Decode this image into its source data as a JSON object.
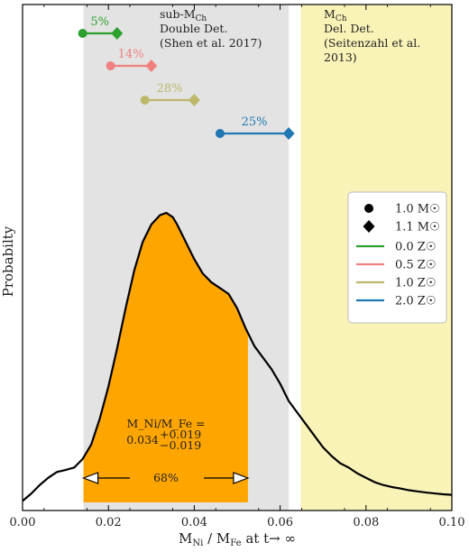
{
  "chart_data": {
    "type": "line",
    "title": "",
    "xlabel": "M_Ni / M_Fe at t→∞",
    "ylabel": "Probabilty",
    "xlim": [
      0.0,
      0.1
    ],
    "xticks": [
      "0.00",
      "0.02",
      "0.04",
      "0.06",
      "0.08",
      "0.10"
    ],
    "grid": false,
    "legend_position": "center-right",
    "regions": [
      {
        "name": "sub-MCh Double Det. (Shen et al. 2017)",
        "x0": 0.0142,
        "x1": 0.062,
        "color": "#e3e3e3",
        "lines": [
          "sub-M",
          "Ch",
          "Double Det.",
          "(Shen et al. 2017)"
        ]
      },
      {
        "name": "MCh Del. Det. (Seitenzahl et al. 2013)",
        "x0": 0.0648,
        "x1": 0.1,
        "color": "#faf3b8",
        "lines": [
          "M",
          "Ch",
          "Del. Det.",
          "(Seitenzahl et al.",
          "2013)"
        ]
      }
    ],
    "density": {
      "x": [
        0.0,
        0.002,
        0.004,
        0.006,
        0.008,
        0.01,
        0.012,
        0.014,
        0.016,
        0.018,
        0.02,
        0.022,
        0.024,
        0.026,
        0.028,
        0.03,
        0.032,
        0.0335,
        0.035,
        0.036,
        0.038,
        0.04,
        0.042,
        0.044,
        0.046,
        0.048,
        0.05,
        0.052,
        0.054,
        0.056,
        0.058,
        0.06,
        0.062,
        0.064,
        0.066,
        0.068,
        0.07,
        0.072,
        0.074,
        0.076,
        0.078,
        0.08,
        0.082,
        0.084,
        0.086,
        0.088,
        0.09,
        0.092,
        0.094,
        0.096,
        0.098,
        0.1
      ],
      "y": [
        0.005,
        0.03,
        0.06,
        0.085,
        0.105,
        0.112,
        0.12,
        0.15,
        0.2,
        0.29,
        0.4,
        0.53,
        0.67,
        0.8,
        0.9,
        0.96,
        0.992,
        1.0,
        0.985,
        0.96,
        0.9,
        0.84,
        0.79,
        0.76,
        0.74,
        0.72,
        0.67,
        0.6,
        0.54,
        0.5,
        0.46,
        0.41,
        0.35,
        0.31,
        0.27,
        0.23,
        0.19,
        0.16,
        0.135,
        0.12,
        0.1,
        0.085,
        0.07,
        0.06,
        0.053,
        0.048,
        0.042,
        0.038,
        0.034,
        0.031,
        0.028,
        0.026
      ],
      "fill_range": [
        0.0142,
        0.0525
      ],
      "fill_color": "#ffa500",
      "fill_label": "68%"
    },
    "estimate": {
      "label": "M_Ni/M_Fe =",
      "value": "0.034",
      "upper": "+0.019",
      "lower": "−0.019"
    },
    "series": [
      {
        "name": "0.0 Z☉",
        "color": "#2ca02c",
        "percent": "5%",
        "x_1_0": 0.014,
        "x_1_1": 0.022
      },
      {
        "name": "0.5 Z☉",
        "color": "#f08080",
        "percent": "14%",
        "x_1_0": 0.0205,
        "x_1_1": 0.03
      },
      {
        "name": "1.0 Z☉",
        "color": "#bdb76b",
        "percent": "28%",
        "x_1_0": 0.0285,
        "x_1_1": 0.04
      },
      {
        "name": "2.0 Z☉",
        "color": "#1f77b4",
        "percent": "25%",
        "x_1_0": 0.046,
        "x_1_1": 0.062
      }
    ],
    "legend": {
      "markers": [
        {
          "label": "1.0 M☉",
          "shape": "circle"
        },
        {
          "label": "1.1 M☉",
          "shape": "diamond"
        }
      ]
    }
  }
}
